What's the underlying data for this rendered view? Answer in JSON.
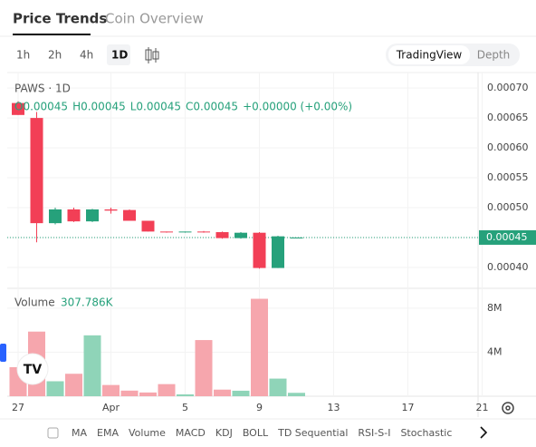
{
  "tabs": [
    "Price Trends",
    "Coin Overview"
  ],
  "intervals": [
    "1h",
    "2h",
    "4h",
    "1D"
  ],
  "views": [
    "TradingView",
    "Depth"
  ],
  "indicators": [
    "MA",
    "EMA",
    "Volume",
    "MACD",
    "KDJ",
    "BOLL",
    "TD Sequential",
    "RSI-S-I",
    "Stochastic"
  ],
  "chart_data": {
    "type": "candlestick",
    "title": "PAWS · 1D",
    "legend": [
      "O0.00045",
      "H0.00045",
      "L0.00045",
      "C0.00045",
      "+0.00000 (+0.00%)"
    ],
    "categories": [
      "27",
      null,
      null,
      null,
      null,
      "Apr",
      null,
      null,
      null,
      "5",
      null,
      null,
      null,
      "9",
      null,
      null,
      null,
      "13",
      null,
      null,
      null,
      "17",
      null,
      null,
      null,
      "21"
    ],
    "open": [
      0.000675,
      0.00065,
      0.000474,
      0.000497,
      0.000477,
      0.000497,
      0.000496,
      0.000478,
      0.00046,
      0.000459,
      0.00046,
      0.000459,
      0.000449,
      0.000458,
      0.000399,
      0.00045,
      null,
      null,
      null,
      null,
      null,
      null,
      null,
      null,
      null,
      null
    ],
    "high": [
      0.000678,
      0.00066,
      0.0005,
      0.0005,
      0.000498,
      0.0005,
      0.000497,
      0.000478,
      0.00046,
      0.00046,
      0.000461,
      0.00046,
      0.000459,
      0.000459,
      0.000453,
      0.00045,
      null,
      null,
      null,
      null,
      null,
      null,
      null,
      null,
      null,
      null
    ],
    "low": [
      0.000655,
      0.000442,
      0.000472,
      0.000476,
      0.000476,
      0.00049,
      0.000478,
      0.00046,
      0.000458,
      0.000458,
      0.000458,
      0.000448,
      0.000448,
      0.000398,
      0.000399,
      0.00045,
      null,
      null,
      null,
      null,
      null,
      null,
      null,
      null,
      null,
      null
    ],
    "close": [
      0.000655,
      0.000474,
      0.000497,
      0.000477,
      0.000497,
      0.000495,
      0.000478,
      0.00046,
      0.000459,
      0.00046,
      0.000459,
      0.000449,
      0.000458,
      0.000399,
      0.000452,
      0.00045,
      null,
      null,
      null,
      null,
      null,
      null,
      null,
      null,
      null,
      null
    ],
    "up_color": "#26a17b",
    "down_color": "#f23f56",
    "ylim": [
      0.000365,
      0.000726
    ],
    "yticks": [
      {
        "value": 0.0004,
        "label": "0.00040"
      },
      {
        "value": 0.00045,
        "label": "0.00045"
      },
      {
        "value": 0.0005,
        "label": "0.00050"
      },
      {
        "value": 0.00055,
        "label": "0.00055"
      },
      {
        "value": 0.0006,
        "label": "0.00060"
      },
      {
        "value": 0.00065,
        "label": "0.00065"
      },
      {
        "value": 0.0007,
        "label": "0.00070"
      }
    ],
    "last_price": {
      "value": 0.00045,
      "label": "0.00045"
    },
    "grid": true,
    "volume": {
      "name": "Volume",
      "legend_value": "307.786K",
      "up_color": "#8fd4b8",
      "down_color": "#f6a6ad",
      "values": [
        2640000,
        5870000,
        1360000,
        2040000,
        5530000,
        1020000,
        510000,
        340000,
        1100000,
        170000,
        5100000,
        600000,
        500000,
        8850000,
        1600000,
        307786,
        null,
        null,
        null,
        null,
        null,
        null,
        null,
        null,
        null,
        null
      ],
      "ylim": [
        0,
        9800000
      ],
      "yticks": [
        {
          "value": 4000000,
          "label": "4M"
        },
        {
          "value": 8000000,
          "label": "8M"
        }
      ]
    }
  }
}
